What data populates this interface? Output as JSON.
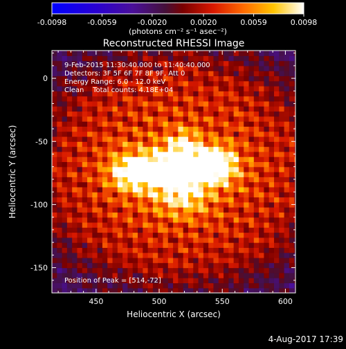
{
  "chart_data": {
    "type": "heatmap",
    "title": "Reconstructed RHESSI Image",
    "xlabel": "Heliocentric X (arcsec)",
    "ylabel": "Heliocentric Y (arcsec)",
    "xlim": [
      415,
      608
    ],
    "ylim": [
      -170,
      22
    ],
    "x_ticks": [
      450,
      500,
      550,
      600
    ],
    "y_ticks": [
      0,
      -50,
      -100,
      -150
    ],
    "colorbar": {
      "min": -0.0098,
      "max": 0.0098,
      "tick_values": [
        -0.0098,
        -0.0059,
        -0.002,
        0.002,
        0.0059,
        0.0098
      ],
      "tick_labels": [
        "-0.0098",
        "-0.0059",
        "-0.0020",
        "0.0020",
        "0.0059",
        "0.0098"
      ],
      "unit_label": "(photons cm⁻² s⁻¹ asec⁻²)"
    },
    "info_lines": [
      "9-Feb-2015 11:30:40.000 to 11:40:40.000",
      "Detectors: 3F 5F 6F 7F 8F 9F, Att 0",
      "Energy Range: 6.0 - 12.0 keV",
      "Clean    Total counts: 4.18E+04"
    ],
    "peak_label": "Position of Peak = [514,-72]",
    "peak": [
      514,
      -72
    ],
    "sources": [
      {
        "x": 514,
        "y": -72,
        "sx": 26,
        "sy": 11,
        "amp": 0.0098
      },
      {
        "x": 545,
        "y": -67,
        "sx": 10,
        "sy": 9,
        "amp": 0.0066
      },
      {
        "x": 478,
        "y": -75,
        "sx": 12,
        "sy": 9,
        "amp": 0.006
      },
      {
        "x": 520,
        "y": -52,
        "sx": 8,
        "sy": 8,
        "amp": 0.005
      },
      {
        "x": 518,
        "y": -95,
        "sx": 14,
        "sy": 10,
        "amp": 0.0045
      }
    ]
  },
  "footer": {
    "date": "4-Aug-2017 17:39"
  }
}
